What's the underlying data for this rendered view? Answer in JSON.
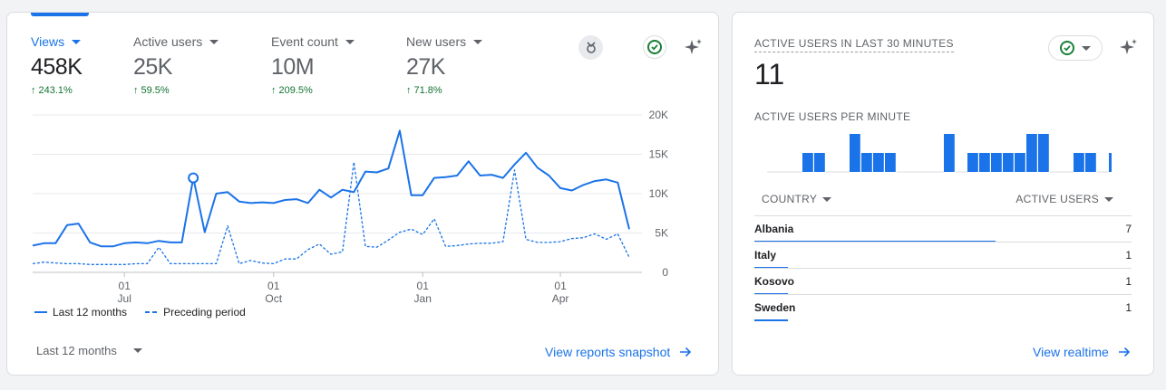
{
  "main": {
    "metrics": [
      {
        "label": "Views",
        "value": "458K",
        "delta": "243.1%",
        "active": true
      },
      {
        "label": "Active users",
        "value": "25K",
        "delta": "59.5%",
        "active": false
      },
      {
        "label": "Event count",
        "value": "10M",
        "delta": "209.5%",
        "active": false
      },
      {
        "label": "New users",
        "value": "27K",
        "delta": "71.8%",
        "active": false
      }
    ],
    "legend": {
      "current": "Last 12 months",
      "previous": "Preceding period"
    },
    "range_select": "Last 12 months",
    "link": "View reports snapshot",
    "icons": [
      "insights-icon",
      "check-circle-icon",
      "sparkle-icon",
      "chevron-down-icon",
      "arrow-right-icon"
    ]
  },
  "chart_data": {
    "type": "line",
    "y_ticks": [
      "20K",
      "15K",
      "10K",
      "5K",
      "0"
    ],
    "ylim": [
      0,
      20000
    ],
    "x_ticks": [
      {
        "day": "01",
        "month": "Jul",
        "index": 8
      },
      {
        "day": "01",
        "month": "Oct",
        "index": 21
      },
      {
        "day": "01",
        "month": "Jan",
        "index": 34
      },
      {
        "day": "01",
        "month": "Apr",
        "index": 46
      }
    ],
    "series": [
      {
        "name": "Last 12 months",
        "style": "solid",
        "color": "#1a73e8",
        "values": [
          3400,
          3700,
          3700,
          6000,
          6200,
          3800,
          3300,
          3300,
          3700,
          3800,
          3700,
          4000,
          3800,
          3800,
          12000,
          5100,
          10000,
          10200,
          9000,
          8800,
          8900,
          8800,
          9200,
          9300,
          8800,
          10500,
          9500,
          10500,
          10200,
          12800,
          12700,
          13200,
          18000,
          9800,
          9800,
          12000,
          12100,
          12300,
          14100,
          12300,
          12400,
          12000,
          13700,
          15200,
          13300,
          12300,
          10700,
          10400,
          11100,
          11600,
          11800,
          11400,
          5500
        ]
      },
      {
        "name": "Preceding period",
        "style": "dashed",
        "color": "#1a73e8",
        "values": [
          1100,
          1300,
          1200,
          1100,
          1100,
          1000,
          1000,
          1000,
          1000,
          1100,
          1100,
          3200,
          1100,
          1100,
          1100,
          1100,
          1100,
          5900,
          1100,
          1500,
          1200,
          1100,
          1700,
          1700,
          2900,
          3600,
          2300,
          2600,
          14000,
          3300,
          3200,
          4100,
          5100,
          5500,
          4800,
          6800,
          3300,
          3400,
          3600,
          3700,
          3700,
          3900,
          13000,
          4200,
          3800,
          3800,
          3900,
          4300,
          4400,
          4900,
          4200,
          4900,
          1900
        ]
      }
    ],
    "highlight_index": 14
  },
  "realtime": {
    "title": "ACTIVE USERS IN LAST 30 MINUTES",
    "value": "11",
    "per_minute_title": "ACTIVE USERS PER MINUTE",
    "per_minute_values": [
      0,
      0,
      0,
      1,
      1,
      0,
      0,
      2,
      1,
      1,
      1,
      0,
      0,
      0,
      0,
      2,
      0,
      1,
      1,
      1,
      1,
      1,
      2,
      2,
      0,
      0,
      1,
      1,
      0,
      1
    ],
    "col_country": "COUNTRY",
    "col_users": "ACTIVE USERS",
    "rows": [
      {
        "country": "Albania",
        "users": "7",
        "share": 0.64
      },
      {
        "country": "Italy",
        "users": "1",
        "share": 0.09
      },
      {
        "country": "Kosovo",
        "users": "1",
        "share": 0.09
      },
      {
        "country": "Sweden",
        "users": "1",
        "share": 0.09
      }
    ],
    "link": "View realtime"
  }
}
